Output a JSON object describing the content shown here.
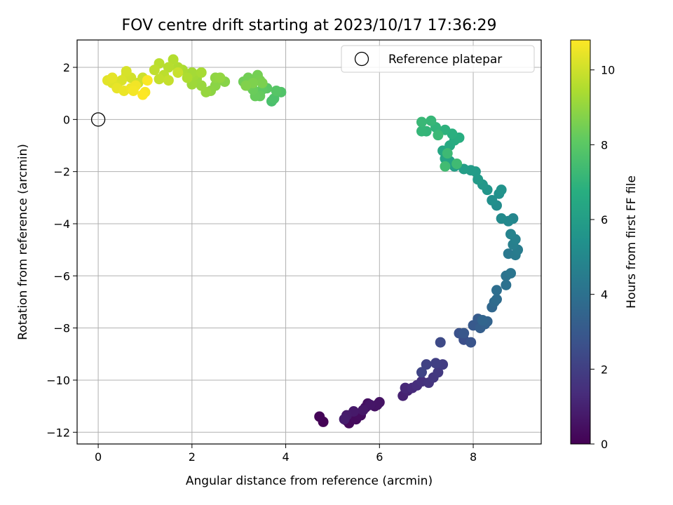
{
  "chart_data": {
    "type": "scatter",
    "title": "FOV centre drift starting at 2023/10/17 17:36:29",
    "xlabel": "Angular distance from reference (arcmin)",
    "ylabel": "Rotation from reference (arcmin)",
    "xlim": [
      -0.45,
      9.45
    ],
    "ylim": [
      -12.45,
      3.05
    ],
    "xticks": [
      0,
      2,
      4,
      6,
      8
    ],
    "yticks": [
      -12,
      -10,
      -8,
      -6,
      -4,
      -2,
      0,
      2
    ],
    "grid": true,
    "legend": {
      "location": "top-right",
      "entries": [
        "Reference platepar"
      ]
    },
    "reference_point": {
      "x": 0,
      "y": 0,
      "label": "Reference platepar"
    },
    "colorbar": {
      "label": "Hours from first FF file",
      "range": [
        0,
        10.8
      ],
      "ticks": [
        0,
        2,
        4,
        6,
        8,
        10
      ],
      "colormap": "viridis"
    },
    "points": [
      [
        4.8,
        -11.6,
        0.05
      ],
      [
        4.72,
        -11.4,
        0.1
      ],
      [
        5.3,
        -11.55,
        0.15
      ],
      [
        5.4,
        -11.4,
        0.2
      ],
      [
        5.35,
        -11.65,
        0.25
      ],
      [
        5.5,
        -11.5,
        0.3
      ],
      [
        5.6,
        -11.35,
        0.35
      ],
      [
        5.7,
        -11.05,
        0.4
      ],
      [
        5.75,
        -10.9,
        0.45
      ],
      [
        5.9,
        -11.0,
        0.5
      ],
      [
        6.0,
        -10.85,
        0.55
      ],
      [
        5.95,
        -10.95,
        0.6
      ],
      [
        5.8,
        -10.95,
        0.65
      ],
      [
        5.65,
        -11.15,
        0.7
      ],
      [
        5.45,
        -11.2,
        0.75
      ],
      [
        5.3,
        -11.35,
        0.8
      ],
      [
        5.25,
        -11.5,
        0.85
      ],
      [
        6.5,
        -10.6,
        1.0
      ],
      [
        6.6,
        -10.4,
        1.1
      ],
      [
        6.55,
        -10.3,
        1.2
      ],
      [
        6.7,
        -10.3,
        1.3
      ],
      [
        6.8,
        -10.2,
        1.4
      ],
      [
        6.9,
        -10.05,
        1.5
      ],
      [
        7.05,
        -10.1,
        1.6
      ],
      [
        7.15,
        -9.9,
        1.7
      ],
      [
        7.25,
        -9.7,
        1.8
      ],
      [
        7.35,
        -9.4,
        1.9
      ],
      [
        7.2,
        -9.35,
        2.0
      ],
      [
        7.0,
        -9.4,
        2.1
      ],
      [
        6.9,
        -9.7,
        2.2
      ],
      [
        7.3,
        -8.55,
        2.4
      ],
      [
        7.8,
        -8.45,
        2.6
      ],
      [
        7.7,
        -8.2,
        2.7
      ],
      [
        7.95,
        -8.55,
        2.8
      ],
      [
        7.8,
        -8.2,
        2.9
      ],
      [
        8.0,
        -7.9,
        3.0
      ],
      [
        8.1,
        -7.65,
        3.1
      ],
      [
        8.15,
        -8.0,
        3.2
      ],
      [
        8.25,
        -7.85,
        3.3
      ],
      [
        8.3,
        -7.75,
        3.4
      ],
      [
        8.2,
        -7.7,
        3.5
      ],
      [
        8.4,
        -7.2,
        3.6
      ],
      [
        8.45,
        -7.0,
        3.7
      ],
      [
        8.5,
        -6.9,
        3.8
      ],
      [
        8.5,
        -6.55,
        3.9
      ],
      [
        8.7,
        -6.35,
        4.0
      ],
      [
        8.7,
        -6.0,
        4.1
      ],
      [
        8.8,
        -5.9,
        4.2
      ],
      [
        8.75,
        -5.15,
        4.3
      ],
      [
        8.9,
        -5.2,
        4.4
      ],
      [
        8.95,
        -5.0,
        4.5
      ],
      [
        8.85,
        -4.8,
        4.6
      ],
      [
        8.9,
        -4.6,
        4.7
      ],
      [
        8.8,
        -4.4,
        4.8
      ],
      [
        8.85,
        -3.8,
        4.9
      ],
      [
        8.75,
        -3.9,
        5.0
      ],
      [
        8.6,
        -3.8,
        5.1
      ],
      [
        8.5,
        -3.3,
        5.2
      ],
      [
        8.4,
        -3.1,
        5.3
      ],
      [
        8.55,
        -2.85,
        5.4
      ],
      [
        8.6,
        -2.7,
        5.5
      ],
      [
        8.3,
        -2.7,
        5.6
      ],
      [
        8.2,
        -2.5,
        5.7
      ],
      [
        8.1,
        -2.3,
        5.8
      ],
      [
        8.05,
        -2.0,
        5.85
      ],
      [
        7.95,
        -1.95,
        5.9
      ],
      [
        7.8,
        -1.9,
        6.0
      ],
      [
        7.6,
        -1.8,
        6.1
      ],
      [
        7.5,
        -1.6,
        6.2
      ],
      [
        7.4,
        -1.5,
        6.3
      ],
      [
        7.35,
        -1.2,
        6.4
      ],
      [
        7.5,
        -1.0,
        6.5
      ],
      [
        7.6,
        -0.8,
        6.6
      ],
      [
        7.7,
        -0.7,
        6.7
      ],
      [
        7.55,
        -0.55,
        6.8
      ],
      [
        7.4,
        -0.4,
        6.9
      ],
      [
        7.2,
        -0.3,
        7.0
      ],
      [
        7.0,
        -0.45,
        7.05
      ],
      [
        6.9,
        -0.45,
        7.1
      ],
      [
        7.1,
        -0.05,
        7.15
      ],
      [
        6.9,
        -0.1,
        7.2
      ],
      [
        7.25,
        -0.6,
        7.25
      ],
      [
        7.45,
        -1.3,
        7.3
      ],
      [
        7.65,
        -1.7,
        7.35
      ],
      [
        7.4,
        -1.8,
        7.4
      ],
      [
        3.7,
        0.7,
        7.6
      ],
      [
        3.75,
        0.8,
        7.7
      ],
      [
        3.9,
        1.05,
        7.8
      ],
      [
        3.8,
        1.1,
        7.9
      ],
      [
        3.6,
        1.2,
        8.0
      ],
      [
        3.5,
        1.15,
        8.1
      ],
      [
        3.45,
        0.9,
        8.2
      ],
      [
        3.35,
        0.9,
        8.25
      ],
      [
        3.3,
        1.15,
        8.3
      ],
      [
        3.2,
        1.3,
        8.35
      ],
      [
        3.1,
        1.45,
        8.4
      ],
      [
        3.2,
        1.6,
        8.45
      ],
      [
        3.4,
        1.7,
        8.5
      ],
      [
        3.45,
        1.5,
        8.55
      ],
      [
        3.5,
        1.4,
        8.6
      ],
      [
        3.3,
        1.4,
        8.65
      ],
      [
        3.15,
        1.3,
        8.7
      ],
      [
        2.7,
        1.45,
        8.8
      ],
      [
        2.5,
        1.3,
        8.85
      ],
      [
        2.4,
        1.1,
        8.9
      ],
      [
        2.5,
        1.6,
        8.95
      ],
      [
        2.6,
        1.6,
        9.0
      ],
      [
        2.3,
        1.05,
        9.05
      ],
      [
        2.2,
        1.3,
        9.1
      ],
      [
        2.1,
        1.55,
        9.15
      ],
      [
        2.0,
        1.35,
        9.2
      ],
      [
        2.05,
        1.7,
        9.25
      ],
      [
        2.0,
        1.8,
        9.3
      ],
      [
        2.2,
        1.8,
        9.35
      ],
      [
        1.8,
        1.9,
        9.4
      ],
      [
        1.9,
        1.6,
        9.45
      ],
      [
        1.7,
        2.0,
        9.5
      ],
      [
        1.6,
        2.3,
        9.55
      ],
      [
        1.5,
        2.0,
        9.6
      ],
      [
        1.3,
        2.15,
        9.65
      ],
      [
        1.4,
        1.7,
        9.7
      ],
      [
        1.2,
        1.9,
        9.75
      ],
      [
        1.3,
        1.55,
        9.8
      ],
      [
        1.5,
        1.5,
        9.85
      ],
      [
        1.7,
        1.8,
        9.9
      ],
      [
        0.95,
        1.6,
        9.95
      ],
      [
        0.85,
        1.4,
        10.0
      ],
      [
        0.7,
        1.6,
        10.05
      ],
      [
        0.6,
        1.7,
        10.1
      ],
      [
        0.6,
        1.85,
        10.15
      ],
      [
        0.5,
        1.5,
        10.2
      ],
      [
        0.4,
        1.3,
        10.25
      ],
      [
        0.3,
        1.4,
        10.3
      ],
      [
        0.2,
        1.5,
        10.35
      ],
      [
        0.3,
        1.6,
        10.4
      ],
      [
        0.4,
        1.2,
        10.45
      ],
      [
        0.55,
        1.1,
        10.5
      ],
      [
        0.7,
        1.2,
        10.55
      ],
      [
        0.8,
        1.3,
        10.6
      ],
      [
        0.75,
        1.1,
        10.65
      ],
      [
        1.0,
        1.05,
        10.7
      ],
      [
        1.05,
        1.5,
        10.75
      ],
      [
        0.95,
        0.95,
        10.8
      ]
    ]
  }
}
